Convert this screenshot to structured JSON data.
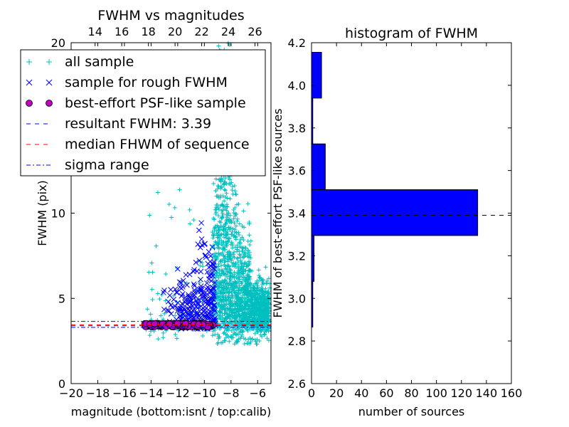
{
  "chart_data": [
    {
      "type": "scatter",
      "title": "FWHM vs magnitudes",
      "xlabel": "magnitude (bottom:isnt / top:calib)",
      "ylabel": "FWHM (pix)",
      "xlim": [
        -20,
        -5
      ],
      "ylim": [
        0,
        20
      ],
      "x_ticks": [
        -20,
        -18,
        -16,
        -14,
        -12,
        -10,
        -8,
        -6
      ],
      "x_tick_labels": [
        "−20",
        "−18",
        "−16",
        "−14",
        "−12",
        "−10",
        "−8",
        "−6"
      ],
      "y_ticks": [
        0,
        5,
        10,
        20
      ],
      "y_tick_labels": [
        "0",
        "5",
        "10",
        "20"
      ],
      "top_axis": {
        "offset": 32.2,
        "ticks": [
          14,
          16,
          18,
          20,
          22,
          24,
          26
        ],
        "tick_labels": [
          "14",
          "16",
          "18",
          "20",
          "22",
          "24",
          "26"
        ]
      },
      "legend": {
        "placement": "upper-left",
        "entries": [
          {
            "label": "all sample",
            "marker": "plus",
            "color": "#00bfbf"
          },
          {
            "label": "sample for rough FWHM",
            "marker": "x",
            "color": "#0000ff"
          },
          {
            "label": "best-effort PSF-like sample",
            "marker": "circle",
            "color": "#bf00bf"
          },
          {
            "label": "resultant FWHM: 3.39",
            "marker": "dashed",
            "color": "#0000ff"
          },
          {
            "label": "median FHWM of sequence",
            "marker": "dashed",
            "color": "#ff0000"
          },
          {
            "label": "sigma range",
            "marker": "dashdot",
            "color": "#0000ff"
          }
        ]
      },
      "series": [
        {
          "name": "all sample",
          "color": "#00bfbf",
          "marker": "plus",
          "description": "dense cloud between x=-9.5 and -5, y 2 to 20; sparse tail x=-14.5 to -10, y 2.5 to 14"
        },
        {
          "name": "sample for rough FWHM",
          "color": "#0000ff",
          "marker": "x",
          "description": "x=-13.5 to -9.2, y 3 to 14"
        },
        {
          "name": "best-effort PSF-like sample",
          "color": "#bf00bf",
          "marker": "circle",
          "description": "x=-14.5 to -9.3, y 3.3 to 3.55"
        }
      ],
      "hlines": [
        {
          "y": 3.39,
          "color": "#0000ff",
          "style": "dashed"
        },
        {
          "y": 3.45,
          "color": "#ff0000",
          "style": "dashed"
        },
        {
          "y": 3.3,
          "color": "#0000ff",
          "style": "dashdot"
        },
        {
          "y": 3.65,
          "color": "#0000ff",
          "style": "dashdot"
        }
      ]
    },
    {
      "type": "bar",
      "orientation": "horizontal",
      "title": "histogram of FWHM",
      "xlabel": "number of sources",
      "ylabel": "FWHM of best-effort PSF-like sources",
      "xlim": [
        0,
        160
      ],
      "ylim": [
        2.6,
        4.2
      ],
      "x_ticks": [
        0,
        20,
        40,
        60,
        80,
        100,
        120,
        140,
        160
      ],
      "x_tick_labels": [
        "0",
        "20",
        "40",
        "60",
        "80",
        "100",
        "120",
        "140",
        "160"
      ],
      "y_ticks": [
        2.6,
        2.8,
        3.0,
        3.2,
        3.4,
        3.6,
        3.8,
        4.0,
        4.2
      ],
      "y_tick_labels": [
        "2.6",
        "2.8",
        "3.0",
        "3.2",
        "3.4",
        "3.6",
        "3.8",
        "4.0",
        "4.2"
      ],
      "bins": [
        {
          "y0": 2.865,
          "y1": 3.08,
          "count": 1
        },
        {
          "y0": 3.08,
          "y1": 3.295,
          "count": 2
        },
        {
          "y0": 3.295,
          "y1": 3.51,
          "count": 133
        },
        {
          "y0": 3.51,
          "y1": 3.725,
          "count": 11
        },
        {
          "y0": 3.725,
          "y1": 3.94,
          "count": 1
        },
        {
          "y0": 3.94,
          "y1": 4.155,
          "count": 8
        }
      ],
      "bar_color": "#0000ff",
      "hline": {
        "y": 3.39,
        "color": "#000000",
        "style": "dashed"
      }
    }
  ]
}
